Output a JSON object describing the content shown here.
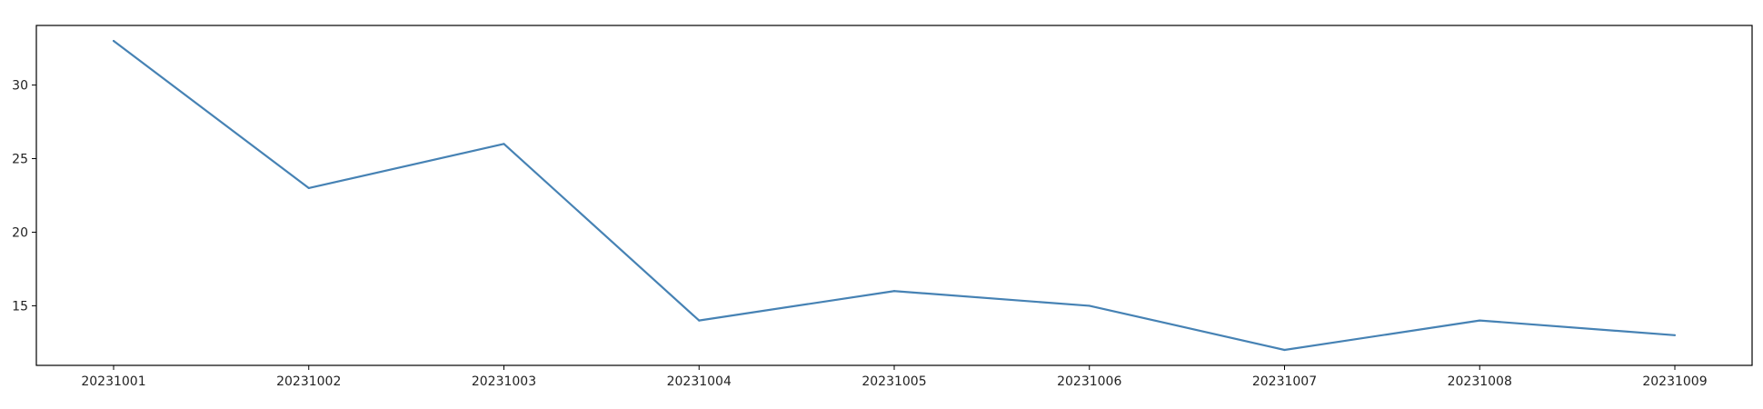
{
  "chart_data": {
    "type": "line",
    "title": "",
    "xlabel": "",
    "ylabel": "",
    "x": [
      "20231001",
      "20231002",
      "20231003",
      "20231004",
      "20231005",
      "20231006",
      "20231007",
      "20231008",
      "20231009"
    ],
    "series": [
      {
        "values": [
          33,
          23,
          26,
          14,
          16,
          15,
          12,
          14,
          13
        ],
        "color": "#4682b4"
      }
    ],
    "yticks": [
      15,
      20,
      25,
      30
    ],
    "ylim": [
      10.95,
      34.05
    ],
    "grid": false,
    "legend": "none"
  }
}
